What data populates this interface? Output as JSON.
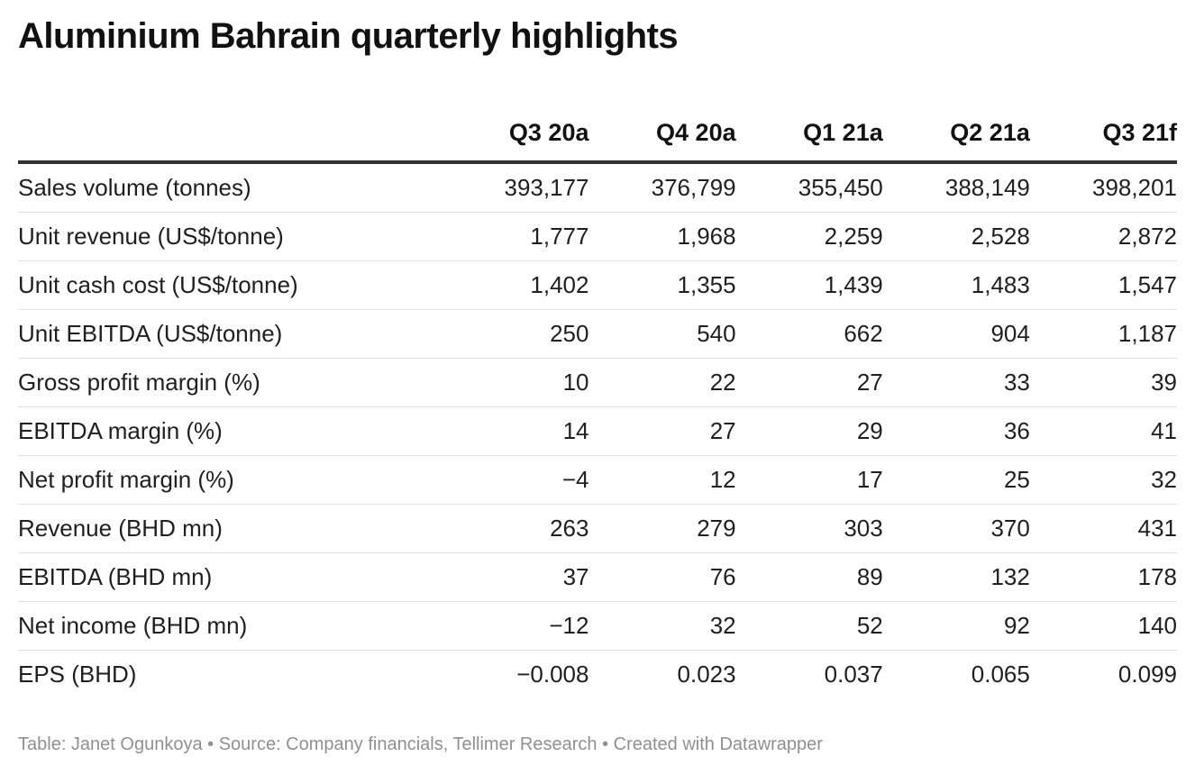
{
  "title": "Aluminium Bahrain quarterly highlights",
  "footer": {
    "text": "Table: Janet Ogunkoya • Source: Company financials, Tellimer Research • Created with Datawrapper"
  },
  "chart_data": {
    "type": "table",
    "title": "Aluminium Bahrain quarterly highlights",
    "columns": [
      "",
      "Q3 20a",
      "Q4 20a",
      "Q1 21a",
      "Q2 21a",
      "Q3 21f"
    ],
    "rows": [
      {
        "label": "Sales volume (tonnes)",
        "values": [
          "393,177",
          "376,799",
          "355,450",
          "388,149",
          "398,201"
        ]
      },
      {
        "label": "Unit revenue (US$/tonne)",
        "values": [
          "1,777",
          "1,968",
          "2,259",
          "2,528",
          "2,872"
        ]
      },
      {
        "label": "Unit cash cost (US$/tonne)",
        "values": [
          "1,402",
          "1,355",
          "1,439",
          "1,483",
          "1,547"
        ]
      },
      {
        "label": "Unit EBITDA (US$/tonne)",
        "values": [
          "250",
          "540",
          "662",
          "904",
          "1,187"
        ]
      },
      {
        "label": "Gross profit margin (%)",
        "values": [
          "10",
          "22",
          "27",
          "33",
          "39"
        ]
      },
      {
        "label": "EBITDA margin (%)",
        "values": [
          "14",
          "27",
          "29",
          "36",
          "41"
        ]
      },
      {
        "label": "Net profit margin (%)",
        "values": [
          "−4",
          "12",
          "17",
          "25",
          "32"
        ]
      },
      {
        "label": "Revenue (BHD mn)",
        "values": [
          "263",
          "279",
          "303",
          "370",
          "431"
        ]
      },
      {
        "label": "EBITDA (BHD mn)",
        "values": [
          "37",
          "76",
          "89",
          "132",
          "178"
        ]
      },
      {
        "label": "Net income (BHD mn)",
        "values": [
          "−12",
          "32",
          "52",
          "92",
          "140"
        ]
      },
      {
        "label": "EPS (BHD)",
        "values": [
          "−0.008",
          "0.023",
          "0.037",
          "0.065",
          "0.099"
        ]
      }
    ]
  }
}
